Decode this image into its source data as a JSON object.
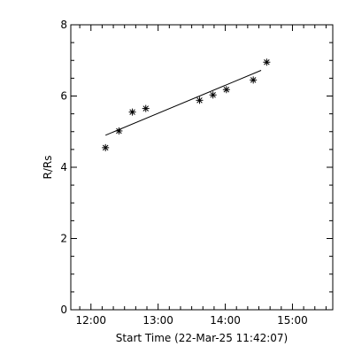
{
  "chart_data": {
    "type": "scatter",
    "title": "",
    "xlabel": "Start Time (22-Mar-25 11:42:07)",
    "ylabel": "R/Rs",
    "x_unit": "time (HH:MM)",
    "xlim": [
      "11:42",
      "15:36"
    ],
    "ylim": [
      0,
      8
    ],
    "x_ticks": [
      "12:00",
      "13:00",
      "14:00",
      "15:00"
    ],
    "y_ticks": [
      "0",
      "2",
      "4",
      "6",
      "8"
    ],
    "marker": "asterisk",
    "points": [
      {
        "t": "12:13",
        "y": 4.55
      },
      {
        "t": "12:25",
        "y": 5.02
      },
      {
        "t": "12:37",
        "y": 5.55
      },
      {
        "t": "12:49",
        "y": 5.65
      },
      {
        "t": "13:37",
        "y": 5.88
      },
      {
        "t": "13:49",
        "y": 6.03
      },
      {
        "t": "14:01",
        "y": 6.18
      },
      {
        "t": "14:25",
        "y": 6.45
      },
      {
        "t": "14:37",
        "y": 6.95
      }
    ],
    "fit_line": {
      "start": {
        "t": "12:13",
        "y": 4.9
      },
      "end": {
        "t": "14:32",
        "y": 6.72
      }
    },
    "grid": false,
    "legend": "none",
    "colors": {
      "axes": "#000000",
      "marks": "#000000",
      "background": "#ffffff"
    }
  }
}
